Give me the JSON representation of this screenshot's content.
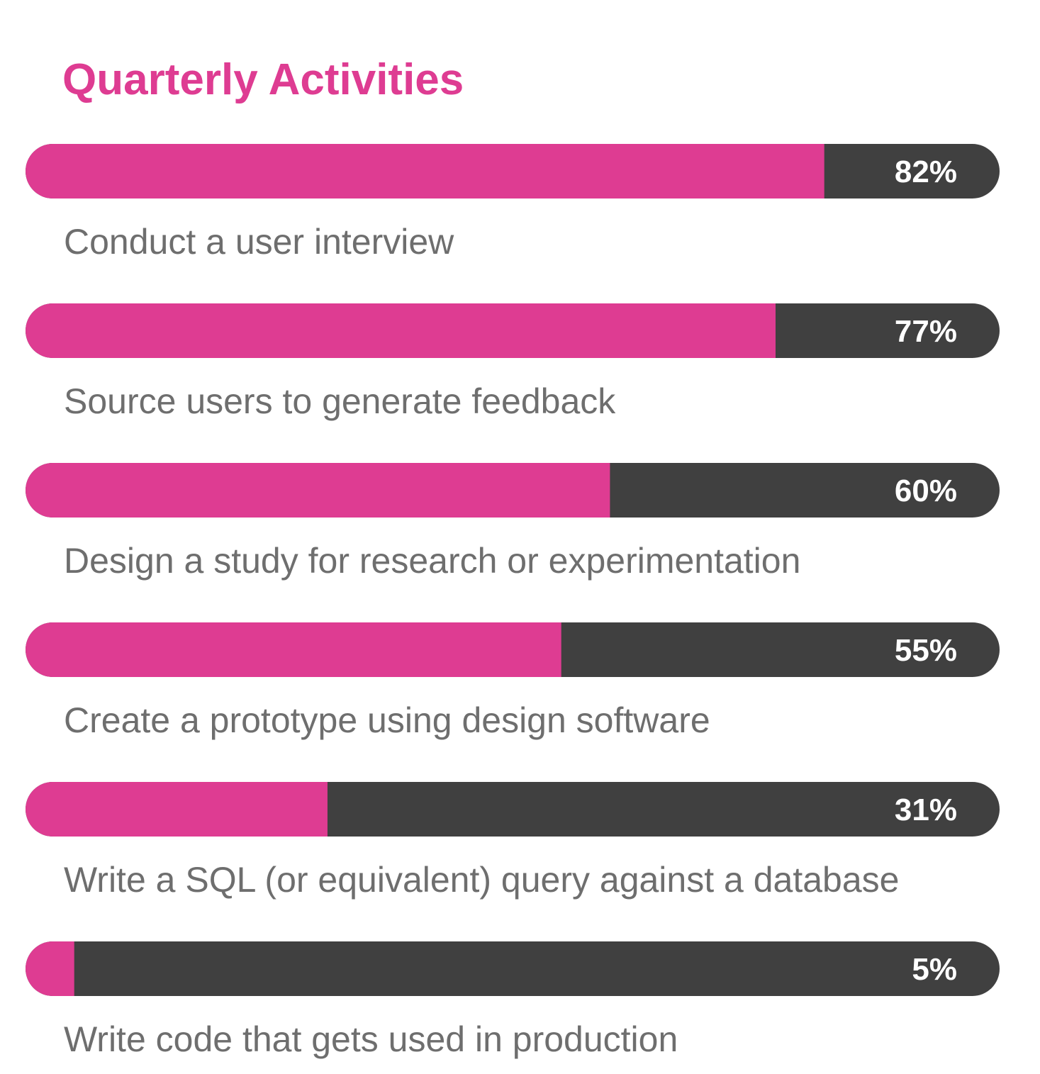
{
  "chart_data": {
    "type": "bar",
    "orientation": "horizontal",
    "title": "Quarterly Activities",
    "categories": [
      "Conduct a user interview",
      "Source users to generate feedback",
      "Design a study for research or experimentation",
      "Create a prototype using design software",
      "Write a SQL (or equivalent) query against a database",
      "Write code that gets used in production"
    ],
    "values": [
      82,
      77,
      60,
      55,
      31,
      5
    ],
    "value_labels": [
      "82%",
      "77%",
      "60%",
      "55%",
      "31%",
      "5%"
    ],
    "xlim": [
      0,
      100
    ],
    "grid": false,
    "legend": "none",
    "colors": {
      "title": "#DE3C92",
      "fill": "#DE3C92",
      "track": "#404040",
      "value_label": "#FFFFFF",
      "category_label": "#6E6E6E"
    }
  }
}
